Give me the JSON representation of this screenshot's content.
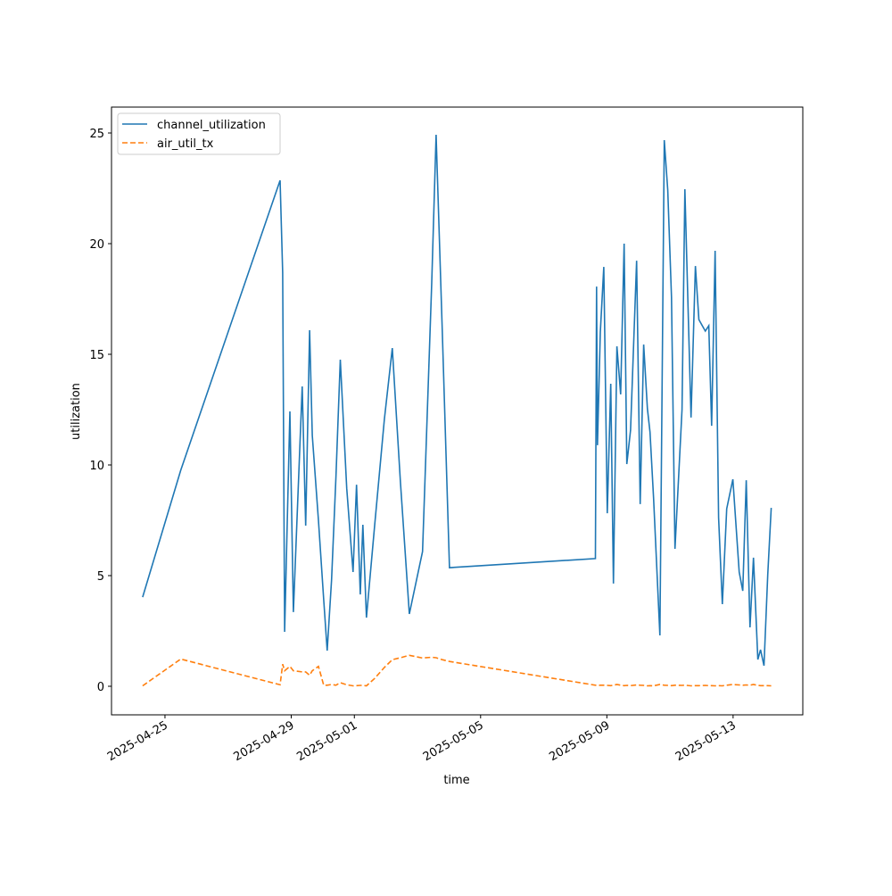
{
  "chart_data": {
    "type": "line",
    "x_label": "time",
    "y_label": "utilization",
    "x": [
      "2025-04-24T07:00",
      "2025-04-25T12:00",
      "2025-04-28T15:30",
      "2025-04-28T17:30",
      "2025-04-28T19:00",
      "2025-04-28T23:00",
      "2025-04-29T01:40",
      "2025-04-29T08:20",
      "2025-04-29T11:00",
      "2025-04-29T14:00",
      "2025-04-29T16:00",
      "2025-04-29T20:40",
      "2025-04-30T00:40",
      "2025-04-30T03:20",
      "2025-04-30T06:40",
      "2025-04-30T10:00",
      "2025-04-30T13:20",
      "2025-04-30T18:10",
      "2025-04-30T23:00",
      "2025-05-01T01:40",
      "2025-05-01T04:30",
      "2025-05-01T06:30",
      "2025-05-01T09:10",
      "2025-05-01T15:20",
      "2025-05-01T22:50",
      "2025-05-02T04:50",
      "2025-05-02T11:00",
      "2025-05-02T17:50",
      "2025-05-03T03:50",
      "2025-05-03T10:50",
      "2025-05-03T14:10",
      "2025-05-03T18:50",
      "2025-05-04T00:20",
      "2025-05-08T15:20",
      "2025-05-08T16:10",
      "2025-05-08T16:50",
      "2025-05-08T19:00",
      "2025-05-08T21:40",
      "2025-05-09T00:20",
      "2025-05-09T03:00",
      "2025-05-09T05:00",
      "2025-05-09T07:40",
      "2025-05-09T10:30",
      "2025-05-09T13:10",
      "2025-05-09T15:10",
      "2025-05-09T18:00",
      "2025-05-09T22:40",
      "2025-05-10T01:20",
      "2025-05-10T04:00",
      "2025-05-10T06:50",
      "2025-05-10T08:50",
      "2025-05-10T11:30",
      "2025-05-10T16:20",
      "2025-05-10T19:40",
      "2025-05-10T22:20",
      "2025-05-11T01:10",
      "2025-05-11T03:50",
      "2025-05-11T09:10",
      "2025-05-11T11:20",
      "2025-05-11T16:00",
      "2025-05-11T19:20",
      "2025-05-11T22:00",
      "2025-05-12T02:50",
      "2025-05-12T05:30",
      "2025-05-12T07:40",
      "2025-05-12T10:20",
      "2025-05-12T13:00",
      "2025-05-12T15:50",
      "2025-05-12T19:10",
      "2025-05-12T23:50",
      "2025-05-13T04:40",
      "2025-05-13T07:20",
      "2025-05-13T10:00",
      "2025-05-13T12:50",
      "2025-05-13T15:30",
      "2025-05-13T18:50",
      "2025-05-13T20:50",
      "2025-05-13T23:30",
      "2025-05-14T02:20",
      "2025-05-14T05:00"
    ],
    "series": [
      {
        "name": "channel_utilization",
        "color": "#1f77b4",
        "dash": false,
        "values": [
          4.03,
          9.76,
          22.86,
          18.7,
          2.46,
          12.42,
          3.35,
          13.55,
          7.26,
          16.09,
          11.33,
          7.5,
          3.91,
          1.61,
          4.8,
          9.44,
          14.76,
          8.95,
          5.16,
          9.11,
          4.15,
          7.3,
          3.1,
          7.22,
          12.06,
          15.28,
          9.23,
          3.27,
          6.09,
          18.23,
          24.92,
          16.09,
          5.36,
          5.77,
          18.06,
          10.89,
          16.0,
          18.95,
          7.82,
          13.67,
          4.64,
          15.36,
          13.19,
          20.0,
          10.04,
          11.57,
          19.23,
          8.23,
          15.44,
          12.54,
          11.49,
          8.51,
          2.3,
          24.68,
          22.42,
          17.58,
          6.21,
          12.5,
          22.46,
          12.14,
          18.99,
          16.57,
          16.05,
          16.29,
          11.77,
          19.68,
          7.62,
          3.71,
          8.02,
          9.35,
          5.16,
          4.31,
          9.31,
          2.66,
          5.81,
          1.21,
          1.65,
          0.93,
          5.04,
          8.06
        ]
      },
      {
        "name": "air_util_tx",
        "color": "#ff7f0e",
        "dash": true,
        "values": [
          0.02,
          1.23,
          0.07,
          1.0,
          0.7,
          0.9,
          0.7,
          0.65,
          0.65,
          0.5,
          0.7,
          0.9,
          0.05,
          0.05,
          0.08,
          0.05,
          0.16,
          0.07,
          0.02,
          0.03,
          0.04,
          0.04,
          0.02,
          0.35,
          0.85,
          1.2,
          1.29,
          1.4,
          1.28,
          1.31,
          1.29,
          1.2,
          1.12,
          0.05,
          0.05,
          0.04,
          0.05,
          0.05,
          0.04,
          0.03,
          0.05,
          0.08,
          0.05,
          0.03,
          0.04,
          0.03,
          0.06,
          0.05,
          0.04,
          0.02,
          0.03,
          0.02,
          0.08,
          0.05,
          0.04,
          0.03,
          0.05,
          0.04,
          0.05,
          0.02,
          0.03,
          0.03,
          0.04,
          0.03,
          0.03,
          0.02,
          0.03,
          0.02,
          0.05,
          0.08,
          0.06,
          0.05,
          0.06,
          0.05,
          0.08,
          0.04,
          0.03,
          0.03,
          0.03,
          0.02
        ]
      }
    ],
    "xlim": [
      "2025-04-23T07:20",
      "2025-05-15T05:00"
    ],
    "xticks": [
      "2025-04-25",
      "2025-04-29",
      "2025-05-01",
      "2025-05-05",
      "2025-05-09",
      "2025-05-13"
    ],
    "ylim": [
      -1.29,
      26.17
    ],
    "yticks": [
      0,
      5,
      10,
      15,
      20,
      25
    ],
    "grid": false,
    "legend": "upper left"
  }
}
